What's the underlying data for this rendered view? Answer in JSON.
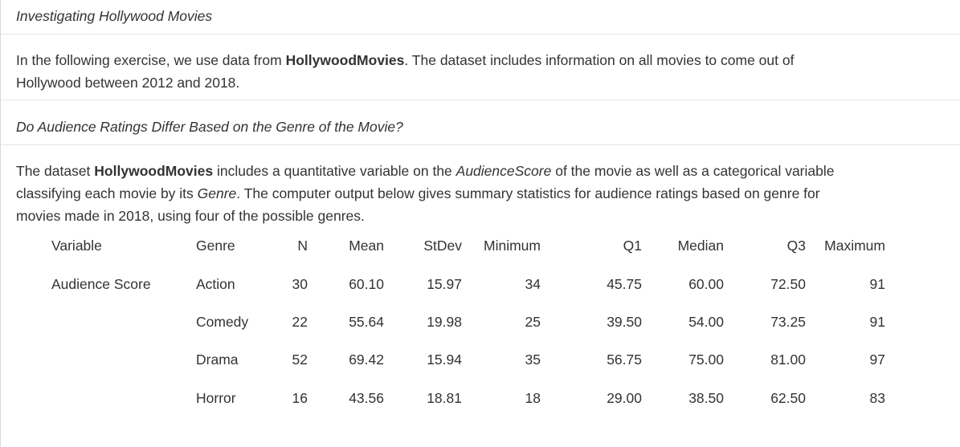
{
  "heading": "Investigating Hollywood Movies",
  "intro": {
    "line1_pre": "In the following exercise, we use data from ",
    "dataset_name": "HollywoodMovies",
    "line1_post": ". The dataset includes information on all movies to come out of",
    "line2": "Hollywood between 2012 and 2018."
  },
  "question": "Do Audience Ratings Differ Based on the Genre of the Movie?",
  "description": {
    "l1_a": "The dataset ",
    "l1_b": "HollywoodMovies",
    "l1_c": " includes a quantitative variable on the ",
    "l1_d": "AudienceScore",
    "l1_e": " of the movie as well as a categorical variable",
    "l2_a": "classifying each movie by its ",
    "l2_b": "Genre",
    "l2_c": ". The computer output below gives summary statistics for audience ratings based on genre for",
    "l3": "movies made in 2018, using four of the possible genres."
  },
  "table": {
    "headers": [
      "Variable",
      "Genre",
      "N",
      "Mean",
      "StDev",
      "Minimum",
      "Q1",
      "Median",
      "Q3",
      "Maximum"
    ],
    "variable": "Audience Score",
    "rows": [
      {
        "genre": "Action",
        "n": "30",
        "mean": "60.10",
        "stdev": "15.97",
        "min": "34",
        "q1": "45.75",
        "median": "60.00",
        "q3": "72.50",
        "max": "91"
      },
      {
        "genre": "Comedy",
        "n": "22",
        "mean": "55.64",
        "stdev": "19.98",
        "min": "25",
        "q1": "39.50",
        "median": "54.00",
        "q3": "73.25",
        "max": "91"
      },
      {
        "genre": "Drama",
        "n": "52",
        "mean": "69.42",
        "stdev": "15.94",
        "min": "35",
        "q1": "56.75",
        "median": "75.00",
        "q3": "81.00",
        "max": "97"
      },
      {
        "genre": "Horror",
        "n": "16",
        "mean": "43.56",
        "stdev": "18.81",
        "min": "18",
        "q1": "29.00",
        "median": "38.50",
        "q3": "62.50",
        "max": "83"
      }
    ]
  }
}
